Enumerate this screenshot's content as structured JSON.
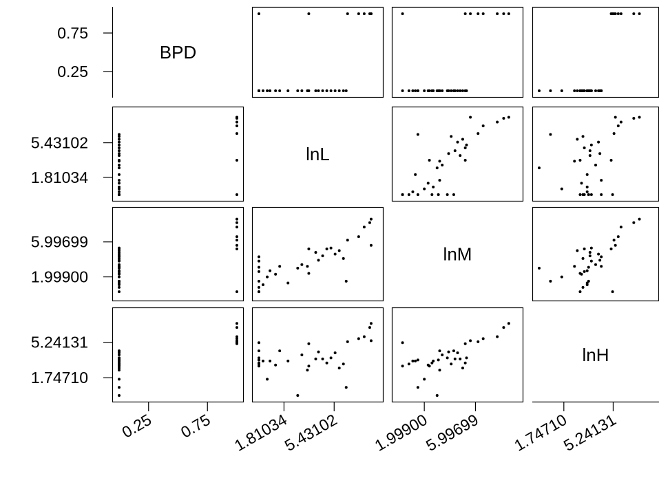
{
  "chart_data": {
    "type": "scatter",
    "title": "",
    "variables": [
      "BPD",
      "lnL",
      "lnM",
      "lnH"
    ],
    "axis_ticks": {
      "BPD": [
        "0.25",
        "0.75"
      ],
      "lnL": [
        "1.81034",
        "5.43102"
      ],
      "lnM": [
        "1.99900",
        "5.99699"
      ],
      "lnH": [
        "1.74710",
        "5.24131"
      ]
    },
    "axis_ranges": {
      "BPD": [
        0,
        1
      ],
      "lnL": [
        0,
        8.5
      ],
      "lnM": [
        0,
        9.2
      ],
      "lnH": [
        0,
        8.0
      ]
    },
    "grid": false,
    "observations": [
      {
        "BPD": 1,
        "lnL": 8.1,
        "lnM": 8.6,
        "lnH": 7.1
      },
      {
        "BPD": 1,
        "lnL": 8.0,
        "lnM": 8.2,
        "lnH": 6.7
      },
      {
        "BPD": 1,
        "lnL": 7.6,
        "lnM": 7.7,
        "lnH": 5.8
      },
      {
        "BPD": 1,
        "lnL": 7.2,
        "lnM": 6.6,
        "lnH": 5.6
      },
      {
        "BPD": 1,
        "lnL": 6.4,
        "lnM": 6.2,
        "lnH": 5.3
      },
      {
        "BPD": 1,
        "lnL": 8.1,
        "lnM": 5.6,
        "lnH": 5.4
      },
      {
        "BPD": 1,
        "lnL": 3.6,
        "lnM": 5.2,
        "lnH": 5.1
      },
      {
        "BPD": 1,
        "lnL": 0,
        "lnM": 0.3,
        "lnH": 5.2
      },
      {
        "BPD": 0,
        "lnL": 0,
        "lnM": 1.5,
        "lnH": 3.5
      },
      {
        "BPD": 0,
        "lnL": 0.3,
        "lnM": 1.1,
        "lnH": 3.4
      },
      {
        "BPD": 0,
        "lnL": 0.6,
        "lnM": 2.0,
        "lnH": 1.6
      },
      {
        "BPD": 0,
        "lnL": 1.5,
        "lnM": 3.2,
        "lnH": 4.4
      },
      {
        "BPD": 0,
        "lnL": 2.8,
        "lnM": 3.0,
        "lnH": 0
      },
      {
        "BPD": 0,
        "lnL": 3.1,
        "lnM": 3.4,
        "lnH": 4.0
      },
      {
        "BPD": 0,
        "lnL": 3.6,
        "lnM": 2.4,
        "lnH": 2.9
      },
      {
        "BPD": 0,
        "lnL": 4.3,
        "lnM": 3.9,
        "lnH": 4.3
      },
      {
        "BPD": 0,
        "lnL": 4.6,
        "lnM": 4.4,
        "lnH": 3.6
      },
      {
        "BPD": 0,
        "lnL": 4.9,
        "lnM": 5.2,
        "lnH": 3.2
      },
      {
        "BPD": 0,
        "lnL": 5.2,
        "lnM": 5.3,
        "lnH": 3.7
      },
      {
        "BPD": 0,
        "lnL": 5.5,
        "lnM": 4.6,
        "lnH": 4.2
      },
      {
        "BPD": 0,
        "lnL": 5.8,
        "lnM": 5.0,
        "lnH": 2.7
      },
      {
        "BPD": 0,
        "lnL": 6.1,
        "lnM": 4.1,
        "lnH": 3.1
      },
      {
        "BPD": 0,
        "lnL": 6.3,
        "lnM": 1.5,
        "lnH": 0.8
      },
      {
        "BPD": 0,
        "lnL": 3.5,
        "lnM": 3.2,
        "lnH": 2.5
      },
      {
        "BPD": 0,
        "lnL": 4.1,
        "lnM": 4.8,
        "lnH": 3.6
      },
      {
        "BPD": 0,
        "lnL": 2.1,
        "lnM": 1.3,
        "lnH": 3.4
      },
      {
        "BPD": 0,
        "lnL": 1.2,
        "lnM": 2.3,
        "lnH": 3.0
      },
      {
        "BPD": 0,
        "lnL": 0.8,
        "lnM": 2.7,
        "lnH": 3.4
      },
      {
        "BPD": 0,
        "lnL": 0,
        "lnM": 2.6,
        "lnH": 3.2
      },
      {
        "BPD": 0,
        "lnL": 0,
        "lnM": 0.3,
        "lnH": 2.9
      },
      {
        "BPD": 0,
        "lnL": 0,
        "lnM": 0.8,
        "lnH": 3.1
      },
      {
        "BPD": 0,
        "lnL": 0,
        "lnM": 3.1,
        "lnH": 3.5
      },
      {
        "BPD": 0,
        "lnL": 0,
        "lnM": 3.8,
        "lnH": 3.7
      },
      {
        "BPD": 0,
        "lnL": 0,
        "lnM": 4.3,
        "lnH": 4.4
      }
    ]
  }
}
